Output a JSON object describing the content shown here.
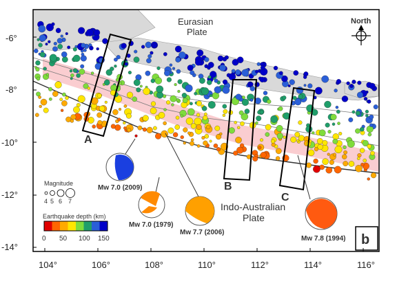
{
  "figure": {
    "panel_label": "b",
    "plates": {
      "upper_line1": "Eurasian",
      "upper_line2": "Plate",
      "lower_line1": "Indo-Australian",
      "lower_line2": "Plate"
    },
    "north_label": "North",
    "lat_ticks": [
      "-6°",
      "-8°",
      "-10°",
      "-12°",
      "-14°"
    ],
    "lon_ticks": [
      "104°",
      "106°",
      "108°",
      "110°",
      "112°",
      "114°",
      "116°"
    ],
    "boxes": [
      "A",
      "B",
      "C"
    ],
    "legend": {
      "magnitude_title": "Magnitude",
      "magnitude_values": [
        "4",
        "5",
        "6",
        "7"
      ],
      "depth_title": "Earthquake depth (km)",
      "depth_ticks": [
        "0",
        "50",
        "100",
        "150"
      ],
      "depth_colors": [
        "#e00000",
        "#ff6600",
        "#ffaa00",
        "#ffe600",
        "#7fdc3c",
        "#1f9e6a",
        "#2a5fd8",
        "#0000c8"
      ]
    },
    "focal_mechanisms": [
      {
        "label": "Mw 7.0 (2009)",
        "color": "#1a3fe0"
      },
      {
        "label": "Mw 7.0 (1979)",
        "color": "#ff8a00"
      },
      {
        "label": "Mw 7.7 (2006)",
        "color": "#ffa000"
      },
      {
        "label": "Mw 7.8 (1994)",
        "color": "#ff5a10"
      }
    ],
    "colors": {
      "land": "#d9d9d9",
      "highlight_band": "#f9c4c8",
      "frame": "#000000"
    }
  }
}
